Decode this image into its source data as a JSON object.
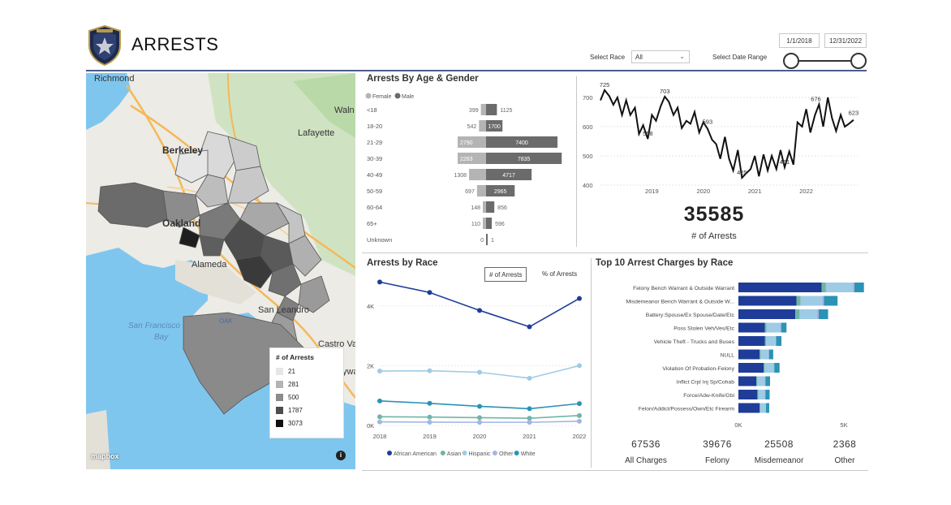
{
  "header": {
    "title": "ARRESTS",
    "select_race_label": "Select Race",
    "race_value": "All",
    "date_range_label": "Select Date Range",
    "date_start": "1/1/2018",
    "date_end": "12/31/2022",
    "logo_icon": "police-badge-icon"
  },
  "map": {
    "places": [
      "Richmond",
      "Berkeley",
      "Lafayette",
      "Oakland",
      "Alameda",
      "San Leandro",
      "Castro Va",
      "Waln",
      "San Francisco",
      "Bay",
      "ywa"
    ],
    "highway_labels": [
      "580",
      "880",
      "880",
      "580",
      "580",
      "101"
    ],
    "airport_label": "OAK",
    "attribution": "mapbox",
    "legend_title": "# of Arrests",
    "legend": [
      {
        "label": "21",
        "color": "#e6e6e6"
      },
      {
        "label": "281",
        "color": "#b4b4b4"
      },
      {
        "label": "500",
        "color": "#8c8c8c"
      },
      {
        "label": "1787",
        "color": "#4d4d4d"
      },
      {
        "label": "3073",
        "color": "#111111"
      }
    ]
  },
  "age_gender": {
    "title": "Arrests By Age & Gender",
    "legend": [
      {
        "label": "Female",
        "color": "#b4b4b4"
      },
      {
        "label": "Male",
        "color": "#6b6b6b"
      }
    ],
    "rows": [
      {
        "age": "<18",
        "female": 399,
        "male": 1125
      },
      {
        "age": "18-20",
        "female": 542,
        "male": 1700
      },
      {
        "age": "21-29",
        "female": 2790,
        "male": 7400
      },
      {
        "age": "30-39",
        "female": 2283,
        "male": 7835
      },
      {
        "age": "40-49",
        "female": 1308,
        "male": 4717
      },
      {
        "age": "50-59",
        "female": 697,
        "male": 2965
      },
      {
        "age": "60-64",
        "female": 148,
        "male": 856
      },
      {
        "age": "65+",
        "female": 110,
        "male": 596
      },
      {
        "age": "Unknown",
        "female": 0,
        "male": 1
      }
    ]
  },
  "trend": {
    "y_ticks": [
      "700",
      "600",
      "500",
      "400"
    ],
    "x_ticks": [
      "2019",
      "2020",
      "2021",
      "2022"
    ],
    "annotations": [
      "725",
      "703",
      "558",
      "593",
      "425",
      "461",
      "676",
      "623"
    ],
    "total_value": "35585",
    "total_label": "# of Arrests"
  },
  "race": {
    "title": "Arrests by Race",
    "toggle_count": "# of Arrests",
    "toggle_pct": "% of Arrests",
    "y_ticks": [
      "4K",
      "2K",
      "0K"
    ],
    "x_ticks": [
      "2018",
      "2019",
      "2020",
      "2021",
      "2022"
    ],
    "legend": [
      {
        "label": "African American",
        "color": "#1f3c99"
      },
      {
        "label": "Asian",
        "color": "#6fb5a6"
      },
      {
        "label": "Hispanic",
        "color": "#9ecbe6"
      },
      {
        "label": "Other",
        "color": "#a3b5e3"
      },
      {
        "label": "White",
        "color": "#2b93b4"
      }
    ]
  },
  "charges": {
    "title": "Top 10 Arrest Charges by Race",
    "x_ticks": [
      "0K",
      "5K"
    ],
    "categories": [
      "Felony Bench Warrant & Outside Warrant",
      "Misdemeanor Bench Warrant & Outside W...",
      "Battery:Spouse/Ex Spouse/Date/Etc",
      "Poss Stolen Veh/Ves/Etc",
      "Vehicle Theft - Trucks and Buses",
      "NULL",
      "Violation Of Probation-Felony",
      "Inflict Crpl Inj Sp/Cohab",
      "Force/Adw-Knife/Gbi",
      "Felon/Addict/Possess/Own/Etc Firearm"
    ]
  },
  "kpis": [
    {
      "value": "67536",
      "label": "All Charges"
    },
    {
      "value": "39676",
      "label": "Felony"
    },
    {
      "value": "25508",
      "label": "Misdemeanor"
    },
    {
      "value": "2368",
      "label": "Other"
    }
  ],
  "chart_data": [
    {
      "type": "bar",
      "title": "Arrests By Age & Gender",
      "categories": [
        "<18",
        "18-20",
        "21-29",
        "30-39",
        "40-49",
        "50-59",
        "60-64",
        "65+",
        "Unknown"
      ],
      "series": [
        {
          "name": "Female",
          "values": [
            399,
            542,
            2790,
            2283,
            1308,
            697,
            148,
            110,
            0
          ]
        },
        {
          "name": "Male",
          "values": [
            1125,
            1700,
            7400,
            7835,
            4717,
            2965,
            856,
            596,
            1
          ]
        }
      ]
    },
    {
      "type": "line",
      "title": "",
      "ylabel": "",
      "ylim": [
        400,
        750
      ],
      "xlim": [
        2018,
        2023
      ],
      "x": [
        2018.0,
        2018.08,
        2018.17,
        2018.25,
        2018.33,
        2018.42,
        2018.5,
        2018.58,
        2018.67,
        2018.75,
        2018.83,
        2018.92,
        2019.0,
        2019.08,
        2019.17,
        2019.25,
        2019.33,
        2019.42,
        2019.5,
        2019.58,
        2019.67,
        2019.75,
        2019.83,
        2019.92,
        2020.0,
        2020.08,
        2020.17,
        2020.25,
        2020.33,
        2020.42,
        2020.5,
        2020.58,
        2020.67,
        2020.75,
        2020.83,
        2020.92,
        2021.0,
        2021.08,
        2021.17,
        2021.25,
        2021.33,
        2021.42,
        2021.5,
        2021.58,
        2021.67,
        2021.75,
        2021.83,
        2021.92,
        2022.0,
        2022.08,
        2022.17,
        2022.25,
        2022.33,
        2022.42,
        2022.5,
        2022.58,
        2022.67,
        2022.75,
        2022.83,
        2022.92
      ],
      "values": [
        690,
        725,
        705,
        675,
        700,
        640,
        690,
        640,
        665,
        575,
        605,
        558,
        640,
        620,
        670,
        703,
        685,
        640,
        665,
        595,
        620,
        610,
        650,
        580,
        615,
        593,
        555,
        540,
        490,
        565,
        490,
        450,
        520,
        425,
        440,
        455,
        500,
        430,
        505,
        450,
        500,
        455,
        520,
        461,
        515,
        470,
        615,
        600,
        660,
        580,
        640,
        676,
        600,
        700,
        630,
        585,
        640,
        600,
        610,
        623
      ]
    },
    {
      "type": "line",
      "title": "Arrests by Race",
      "categories": [
        "2018",
        "2019",
        "2020",
        "2021",
        "2022"
      ],
      "ylim": [
        0,
        5000
      ],
      "series": [
        {
          "name": "African American",
          "values": [
            4800,
            4450,
            3850,
            3300,
            4250
          ]
        },
        {
          "name": "Asian",
          "values": [
            290,
            280,
            260,
            240,
            330
          ]
        },
        {
          "name": "Hispanic",
          "values": [
            1820,
            1830,
            1780,
            1580,
            2000
          ]
        },
        {
          "name": "Other",
          "values": [
            120,
            110,
            105,
            105,
            140
          ]
        },
        {
          "name": "White",
          "values": [
            820,
            740,
            640,
            560,
            730
          ]
        }
      ]
    },
    {
      "type": "bar",
      "title": "Top 10 Arrest Charges by Race",
      "categories": [
        "Felony Bench Warrant & Outside Warrant",
        "Misdemeanor Bench Warrant & Outside W...",
        "Battery:Spouse/Ex Spouse/Date/Etc",
        "Poss Stolen Veh/Ves/Etc",
        "Vehicle Theft - Trucks and Buses",
        "NULL",
        "Violation Of Probation-Felony",
        "Inflict Crpl Inj Sp/Cohab",
        "Force/Adw-Knife/Gbi",
        "Felon/Addict/Possess/Own/Etc Firearm"
      ],
      "xlim": [
        0,
        6000
      ],
      "series": [
        {
          "name": "African American",
          "values": [
            3950,
            2750,
            2700,
            1250,
            1250,
            1000,
            1200,
            850,
            900,
            1000
          ]
        },
        {
          "name": "Asian",
          "values": [
            200,
            200,
            200,
            80,
            60,
            60,
            60,
            50,
            50,
            40
          ]
        },
        {
          "name": "Hispanic",
          "values": [
            1250,
            1000,
            800,
            650,
            450,
            350,
            400,
            350,
            300,
            250
          ]
        },
        {
          "name": "Other",
          "values": [
            100,
            100,
            100,
            50,
            30,
            40,
            40,
            30,
            30,
            20
          ]
        },
        {
          "name": "White",
          "values": [
            450,
            650,
            450,
            250,
            250,
            200,
            250,
            220,
            200,
            150
          ]
        }
      ]
    }
  ]
}
